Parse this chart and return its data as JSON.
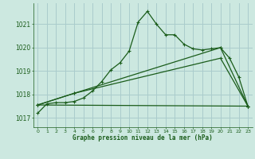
{
  "bg_color": "#cce8e0",
  "grid_color": "#aacccc",
  "line_color": "#1a5c1a",
  "title": "Graphe pression niveau de la mer (hPa)",
  "xlim": [
    -0.5,
    23.5
  ],
  "ylim": [
    1016.6,
    1021.9
  ],
  "yticks": [
    1017,
    1018,
    1019,
    1020,
    1021
  ],
  "xticks": [
    0,
    1,
    2,
    3,
    4,
    5,
    6,
    7,
    8,
    9,
    10,
    11,
    12,
    13,
    14,
    15,
    16,
    17,
    18,
    19,
    20,
    21,
    22,
    23
  ],
  "series": [
    {
      "x": [
        0,
        1,
        2,
        3,
        4,
        5,
        6,
        7,
        8,
        9,
        10,
        11,
        12,
        13,
        14,
        15,
        16,
        17,
        18,
        19,
        20,
        21,
        22,
        23
      ],
      "y": [
        1017.2,
        1017.6,
        1017.65,
        1017.65,
        1017.7,
        1017.85,
        1018.15,
        1018.55,
        1019.05,
        1019.35,
        1019.85,
        1021.1,
        1021.55,
        1021.0,
        1020.55,
        1020.55,
        1020.15,
        1019.95,
        1019.9,
        1019.95,
        1020.0,
        1019.55,
        1018.75,
        1017.5
      ]
    },
    {
      "x": [
        0,
        23
      ],
      "y": [
        1017.55,
        1017.5
      ]
    },
    {
      "x": [
        0,
        4,
        20,
        23
      ],
      "y": [
        1017.55,
        1018.05,
        1019.55,
        1017.5
      ]
    },
    {
      "x": [
        0,
        4,
        20,
        23
      ],
      "y": [
        1017.55,
        1018.05,
        1020.0,
        1017.5
      ]
    }
  ]
}
